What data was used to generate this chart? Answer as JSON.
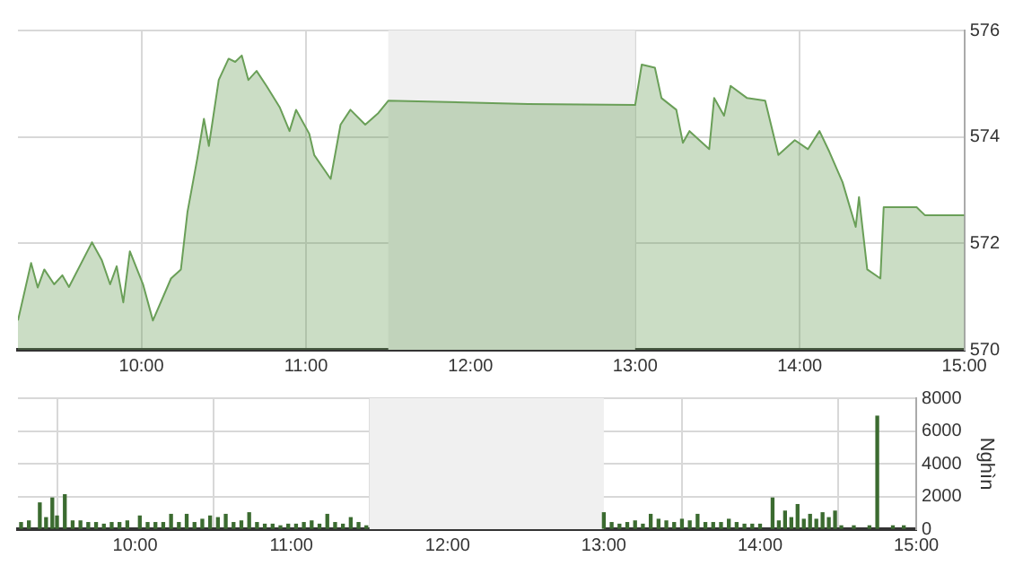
{
  "chart_data": [
    {
      "type": "area",
      "x": [
        9.25,
        9.33,
        9.37,
        9.41,
        9.47,
        9.52,
        9.56,
        9.7,
        9.76,
        9.81,
        9.85,
        9.89,
        9.93,
        10.01,
        10.07,
        10.18,
        10.24,
        10.28,
        10.34,
        10.38,
        10.41,
        10.47,
        10.53,
        10.57,
        10.61,
        10.65,
        10.7,
        10.76,
        10.84,
        10.9,
        10.94,
        11.02,
        11.05,
        11.15,
        11.21,
        11.27,
        11.36,
        11.44,
        11.5,
        12.35,
        13.0,
        13.04,
        13.12,
        13.16,
        13.25,
        13.29,
        13.33,
        13.45,
        13.48,
        13.54,
        13.58,
        13.68,
        13.79,
        13.87,
        13.97,
        14.05,
        14.12,
        14.18,
        14.26,
        14.34,
        14.36,
        14.41,
        14.49,
        14.51,
        14.71,
        14.76,
        15.0
      ],
      "series": [
        {
          "color": "#6a9f58",
          "values": [
            570.55,
            571.63,
            571.17,
            571.51,
            571.23,
            571.4,
            571.18,
            572.02,
            571.68,
            571.23,
            571.57,
            570.89,
            571.85,
            571.23,
            570.55,
            571.34,
            571.51,
            572.59,
            573.6,
            574.34,
            573.83,
            575.07,
            575.47,
            575.41,
            575.53,
            575.07,
            575.24,
            574.96,
            574.56,
            574.11,
            574.51,
            574.06,
            573.66,
            573.21,
            574.23,
            574.51,
            574.23,
            574.45,
            574.68,
            574.62,
            574.6,
            575.36,
            575.3,
            574.73,
            574.51,
            573.89,
            574.11,
            573.77,
            574.73,
            574.4,
            574.96,
            574.73,
            574.68,
            573.66,
            573.94,
            573.77,
            574.11,
            573.72,
            573.15,
            572.31,
            572.87,
            571.51,
            571.34,
            572.68,
            572.68,
            572.53,
            572.53
          ]
        }
      ],
      "xlim": [
        9.25,
        15
      ],
      "xticks": [
        {
          "value": 10,
          "label": "10:00"
        },
        {
          "value": 11,
          "label": "11:00"
        },
        {
          "value": 12,
          "label": "12:00"
        },
        {
          "value": 13,
          "label": "13:00"
        },
        {
          "value": 14,
          "label": "14:00"
        },
        {
          "value": 15,
          "label": "15:00"
        }
      ],
      "ylim": [
        570,
        576
      ],
      "yticks": [
        570,
        572,
        574,
        576
      ],
      "grid": true,
      "bands": [
        {
          "axis": "x",
          "from": 11.5,
          "to": 13,
          "color": "#f0f0f0"
        }
      ]
    },
    {
      "type": "bar",
      "ylabel": "Nghìn",
      "x": [
        9.27,
        9.32,
        9.39,
        9.43,
        9.47,
        9.5,
        9.55,
        9.6,
        9.65,
        9.7,
        9.75,
        9.8,
        9.85,
        9.9,
        9.95,
        10.03,
        10.08,
        10.13,
        10.18,
        10.23,
        10.28,
        10.33,
        10.38,
        10.43,
        10.48,
        10.53,
        10.58,
        10.63,
        10.68,
        10.73,
        10.78,
        10.83,
        10.88,
        10.93,
        10.98,
        11.03,
        11.08,
        11.13,
        11.18,
        11.23,
        11.28,
        11.33,
        11.38,
        11.43,
        11.48,
        13.0,
        13.05,
        13.1,
        13.15,
        13.2,
        13.25,
        13.3,
        13.35,
        13.4,
        13.45,
        13.5,
        13.55,
        13.6,
        13.65,
        13.7,
        13.75,
        13.8,
        13.85,
        13.9,
        13.95,
        14.0,
        14.08,
        14.12,
        14.16,
        14.2,
        14.24,
        14.28,
        14.32,
        14.36,
        14.4,
        14.44,
        14.48,
        14.52,
        14.6,
        14.7,
        14.75,
        14.85,
        14.92
      ],
      "series": [
        {
          "color": "#3b6b30",
          "values": [
            400,
            500,
            1600,
            700,
            1900,
            800,
            2100,
            500,
            500,
            400,
            400,
            300,
            400,
            400,
            500,
            800,
            400,
            400,
            400,
            900,
            400,
            900,
            400,
            600,
            800,
            700,
            900,
            400,
            500,
            1000,
            400,
            300,
            300,
            200,
            300,
            300,
            400,
            500,
            300,
            900,
            400,
            300,
            700,
            400,
            200,
            1000,
            400,
            300,
            400,
            500,
            300,
            900,
            600,
            500,
            400,
            600,
            500,
            900,
            400,
            400,
            400,
            600,
            400,
            300,
            300,
            300,
            1900,
            500,
            1100,
            700,
            1500,
            600,
            900,
            600,
            1000,
            700,
            1100,
            200,
            200,
            200,
            6900,
            200,
            200
          ]
        }
      ],
      "xlim": [
        9.25,
        15
      ],
      "xticks": [
        {
          "value": 10,
          "label": "10:00"
        },
        {
          "value": 11,
          "label": "11:00"
        },
        {
          "value": 12,
          "label": "12:00"
        },
        {
          "value": 13,
          "label": "13:00"
        },
        {
          "value": 14,
          "label": "14:00"
        },
        {
          "value": 15,
          "label": "15:00"
        }
      ],
      "ylim": [
        0,
        8000
      ],
      "yticks": [
        0,
        2000,
        4000,
        6000,
        8000
      ],
      "grid": true,
      "bands": [
        {
          "axis": "x",
          "from": 11.5,
          "to": 13,
          "color": "#f0f0f0"
        }
      ]
    }
  ]
}
